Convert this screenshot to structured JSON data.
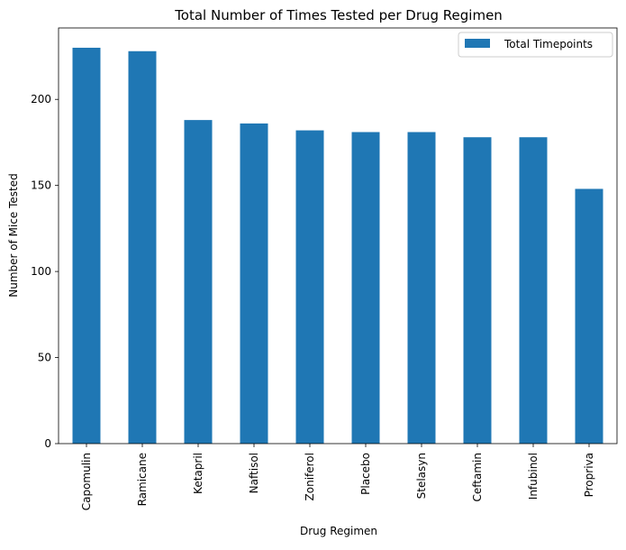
{
  "chart_data": {
    "type": "bar",
    "title": "Total Number of Times Tested per Drug Regimen",
    "xlabel": "Drug Regimen",
    "ylabel": "Number of Mice Tested",
    "categories": [
      "Capomulin",
      "Ramicane",
      "Ketapril",
      "Naftisol",
      "Zoniferol",
      "Placebo",
      "Stelasyn",
      "Ceftamin",
      "Infubinol",
      "Propriva"
    ],
    "series": [
      {
        "name": "Total Timepoints",
        "color": "#1f77b4",
        "values": [
          230,
          228,
          188,
          186,
          182,
          181,
          181,
          178,
          178,
          148
        ]
      }
    ],
    "ylim": [
      0,
      241.5
    ],
    "yticks": [
      "0",
      "50",
      "100",
      "150",
      "200"
    ],
    "legend_position": "top-right",
    "grid": false
  }
}
